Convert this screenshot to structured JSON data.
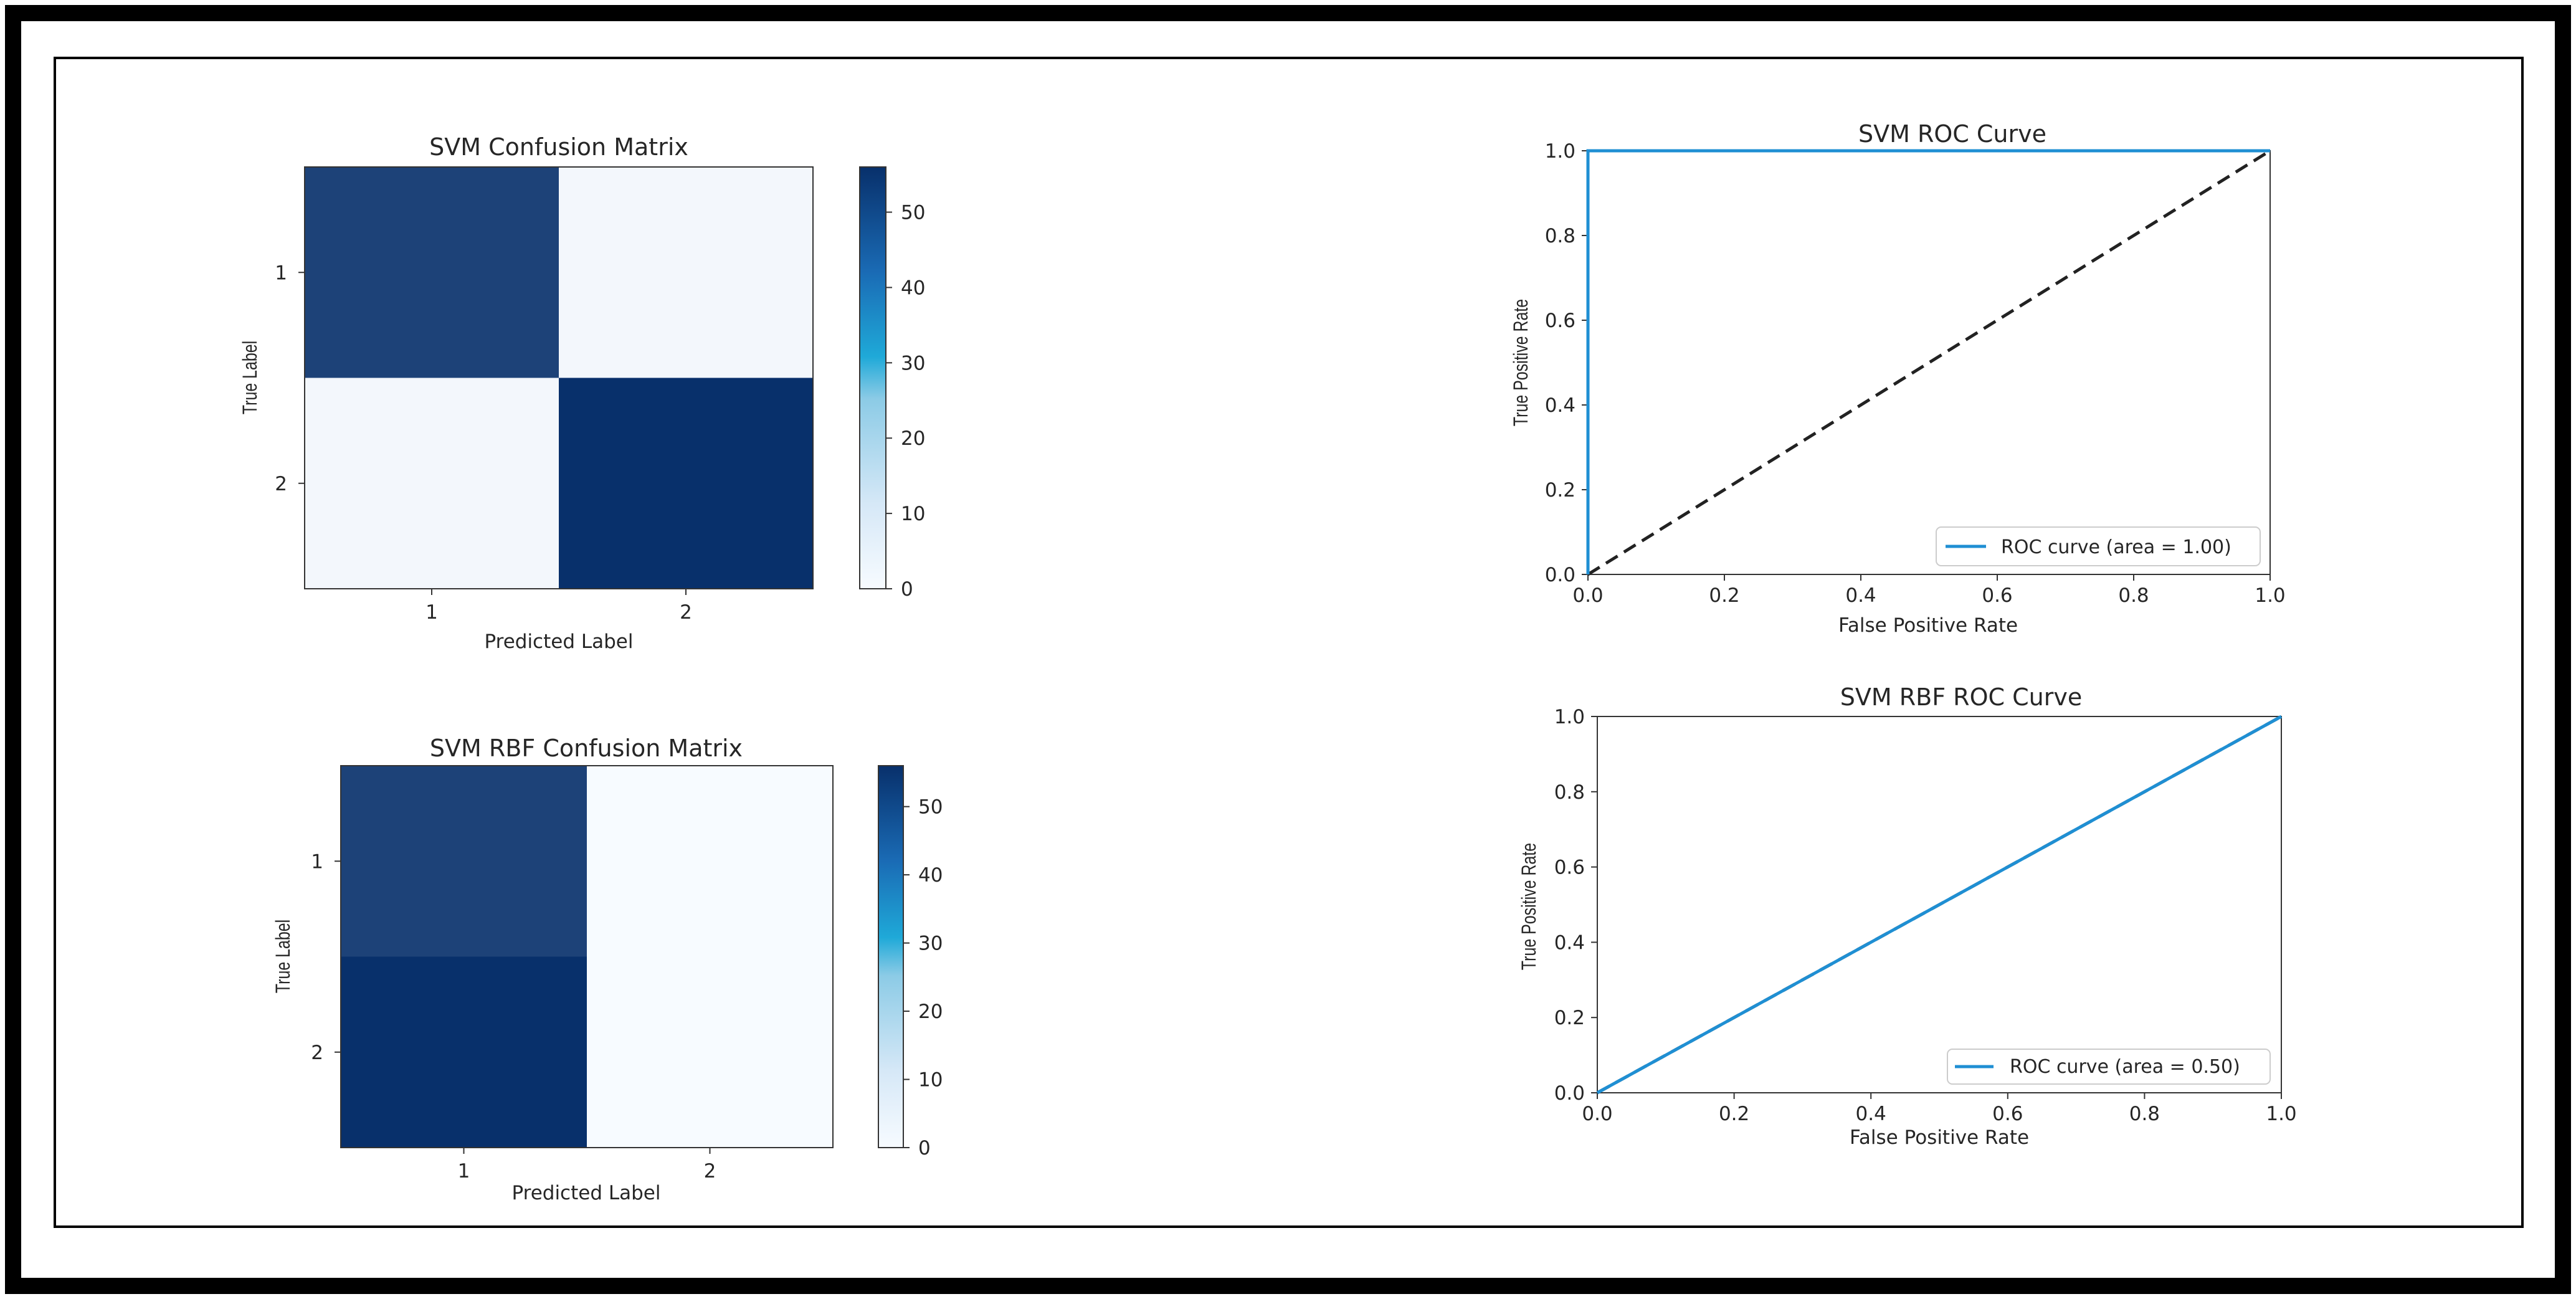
{
  "colorbar_ticks": [
    "0",
    "10",
    "20",
    "30",
    "40",
    "50"
  ],
  "colorbar_range": [
    0,
    56
  ],
  "colors": {
    "roc_line": "#1f8fd3",
    "diagonal": "#222222",
    "cmap_low": "#f7fbff",
    "cmap_high": "#08306b"
  },
  "chart_data": [
    {
      "type": "heatmap",
      "title": "SVM Confusion Matrix",
      "xlabel": "Predicted Label",
      "ylabel": "True Label",
      "x_categories": [
        "1",
        "2"
      ],
      "y_categories": [
        "1",
        "2"
      ],
      "values": [
        [
          51,
          1
        ],
        [
          1,
          56
        ]
      ]
    },
    {
      "type": "heatmap",
      "title": "SVM RBF Confusion Matrix",
      "xlabel": "Predicted Label",
      "ylabel": "True Label",
      "x_categories": [
        "1",
        "2"
      ],
      "y_categories": [
        "1",
        "2"
      ],
      "values": [
        [
          51,
          0
        ],
        [
          56,
          0
        ]
      ]
    },
    {
      "type": "line",
      "title": "SVM ROC Curve",
      "xlabel": "False Positive Rate",
      "ylabel": "True Positive Rate",
      "xlim": [
        0,
        1
      ],
      "ylim": [
        0,
        1
      ],
      "ticks": [
        "0.0",
        "0.2",
        "0.4",
        "0.6",
        "0.8",
        "1.0"
      ],
      "series": [
        {
          "name": "ROC curve (area = 1.00)",
          "x": [
            0,
            0,
            1
          ],
          "y": [
            0,
            1,
            1
          ]
        }
      ],
      "reference_line": {
        "x": [
          0,
          1
        ],
        "y": [
          0,
          1
        ]
      },
      "legend": "lower-right"
    },
    {
      "type": "line",
      "title": "SVM RBF ROC Curve",
      "xlabel": "False Positive Rate",
      "ylabel": "True Positive Rate",
      "xlim": [
        0,
        1
      ],
      "ylim": [
        0,
        1
      ],
      "ticks": [
        "0.0",
        "0.2",
        "0.4",
        "0.6",
        "0.8",
        "1.0"
      ],
      "series": [
        {
          "name": "ROC curve (area = 0.50)",
          "x": [
            0,
            1
          ],
          "y": [
            0,
            1
          ]
        }
      ],
      "reference_line": {
        "x": [
          0,
          1
        ],
        "y": [
          0,
          1
        ]
      },
      "legend": "lower-right"
    }
  ]
}
